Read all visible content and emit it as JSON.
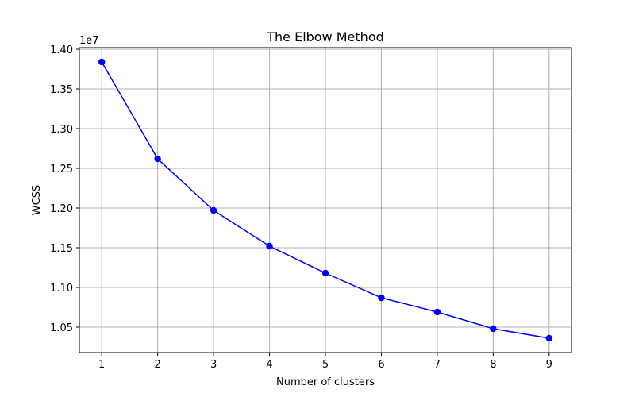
{
  "chart_data": {
    "type": "line",
    "title": "The Elbow Method",
    "xlabel": "Number of clusters",
    "ylabel": "WCSS",
    "y_offset_label": "1e7",
    "x": [
      1,
      2,
      3,
      4,
      5,
      6,
      7,
      8,
      9
    ],
    "series": [
      {
        "values": [
          13.84,
          12.62,
          11.97,
          11.52,
          11.18,
          10.87,
          10.69,
          10.48,
          10.36
        ],
        "color": "#0000ff",
        "marker": "circle"
      }
    ],
    "x_ticks": [
      "1",
      "2",
      "3",
      "4",
      "5",
      "6",
      "7",
      "8",
      "9"
    ],
    "y_ticks": [
      "1.05",
      "1.10",
      "1.15",
      "1.20",
      "1.25",
      "1.30",
      "1.35",
      "1.40"
    ],
    "y_tick_values": [
      10.5,
      11.0,
      11.5,
      12.0,
      12.5,
      13.0,
      13.5,
      14.0
    ],
    "xlim": [
      0.6,
      9.4
    ],
    "ylim": [
      10.18,
      14.02
    ],
    "grid": true,
    "grid_color": "#b0b0b0"
  }
}
